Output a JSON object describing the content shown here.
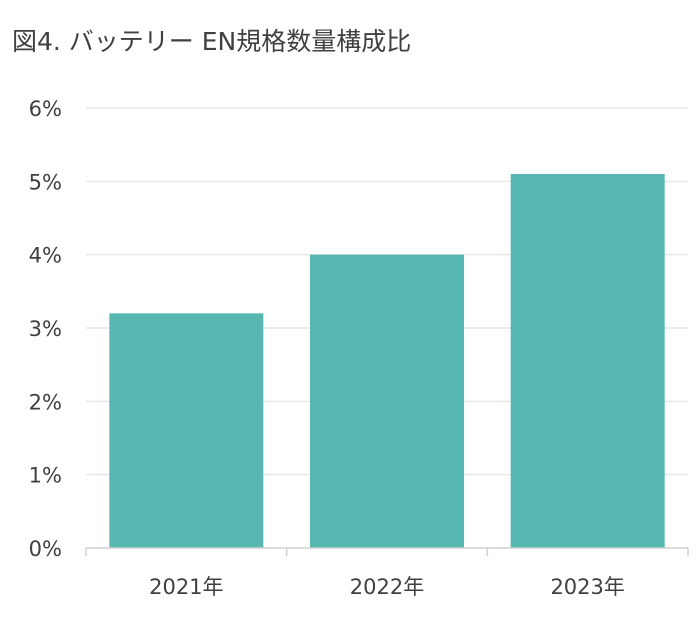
{
  "chart_data": {
    "type": "bar",
    "title": "図4. バッテリー EN規格数量構成比",
    "categories": [
      "2021年",
      "2022年",
      "2023年"
    ],
    "values": [
      3.2,
      4.0,
      5.1
    ],
    "value_unit": "%",
    "ylim": [
      0,
      6
    ],
    "yticks": [
      0,
      1,
      2,
      3,
      4,
      5,
      6
    ],
    "ytick_labels": [
      "0%",
      "1%",
      "2%",
      "3%",
      "4%",
      "5%",
      "6%"
    ],
    "xlabel": "",
    "ylabel": "",
    "grid": true,
    "legend": "none",
    "colors": {
      "bar": "#56b8b1",
      "grid": "#e6e6e6",
      "axis": "#d0d0d0",
      "text": "#404040"
    }
  }
}
